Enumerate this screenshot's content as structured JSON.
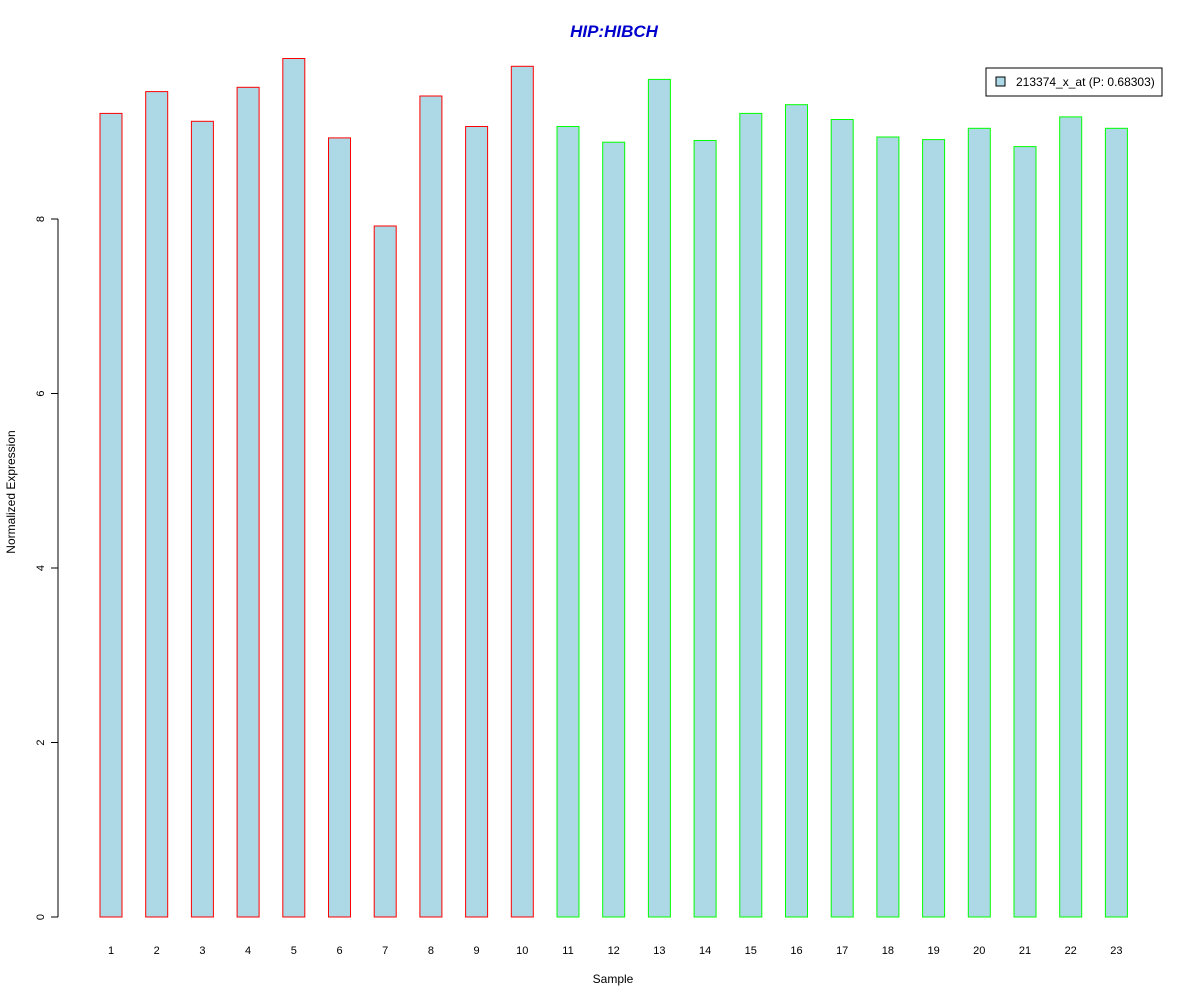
{
  "colors": {
    "bar_fill": "#add8e6",
    "group1_border": "#ff0000",
    "group2_border": "#00ff00",
    "title": "#0000cc"
  },
  "chart_data": {
    "type": "bar",
    "title": "HIP:HIBCH",
    "xlabel": "Sample",
    "ylabel": "Normalized Expression",
    "categories": [
      "1",
      "2",
      "3",
      "4",
      "5",
      "6",
      "7",
      "8",
      "9",
      "10",
      "11",
      "12",
      "13",
      "14",
      "15",
      "16",
      "17",
      "18",
      "19",
      "20",
      "21",
      "22",
      "23"
    ],
    "series": [
      {
        "name": "213374_x_at (P: 0.68303)",
        "values": [
          9.21,
          9.46,
          9.12,
          9.51,
          9.84,
          8.93,
          7.92,
          9.41,
          9.06,
          9.75,
          9.06,
          8.88,
          9.6,
          8.9,
          9.21,
          9.31,
          9.14,
          8.94,
          8.91,
          9.04,
          8.83,
          9.17,
          9.04
        ]
      }
    ],
    "group_border_colors": [
      "#ff0000",
      "#ff0000",
      "#ff0000",
      "#ff0000",
      "#ff0000",
      "#ff0000",
      "#ff0000",
      "#ff0000",
      "#ff0000",
      "#ff0000",
      "#00ff00",
      "#00ff00",
      "#00ff00",
      "#00ff00",
      "#00ff00",
      "#00ff00",
      "#00ff00",
      "#00ff00",
      "#00ff00",
      "#00ff00",
      "#00ff00",
      "#00ff00",
      "#00ff00"
    ],
    "yticks": [
      "0",
      "2",
      "4",
      "6",
      "8"
    ],
    "ylim": [
      0,
      9.9
    ],
    "grid": false,
    "legend_position": "top-right"
  }
}
